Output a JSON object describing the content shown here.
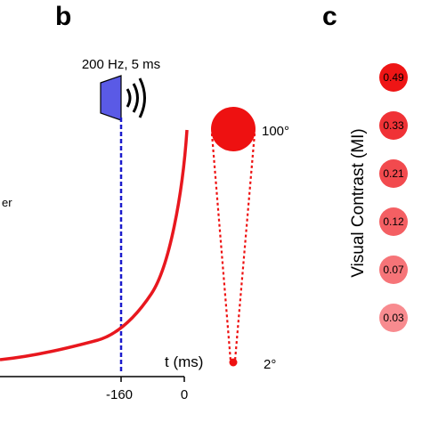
{
  "panel_b": {
    "letter": "b",
    "stimulus_label": "200 Hz, 5 ms",
    "partial_label": "er",
    "size_max_label": "100°",
    "size_min_label": "2°",
    "x_axis_label": "t (ms)",
    "ticks": [
      "-160",
      "0"
    ],
    "curve_color": "#e8171e",
    "speaker_color": "#5a5ae6",
    "marker_line_color": "#1a1acc",
    "loom_color": "#ee1111"
  },
  "panel_c": {
    "letter": "c",
    "y_label": "Visual Contrast (MI)",
    "circles": [
      {
        "label": "0.49",
        "color": "#ee1515"
      },
      {
        "label": "0.33",
        "color": "#f03236"
      },
      {
        "label": "0.21",
        "color": "#f24a4e"
      },
      {
        "label": "0.12",
        "color": "#f45f63"
      },
      {
        "label": "0.07",
        "color": "#f67478"
      },
      {
        "label": "0.03",
        "color": "#f88b8f"
      }
    ]
  }
}
